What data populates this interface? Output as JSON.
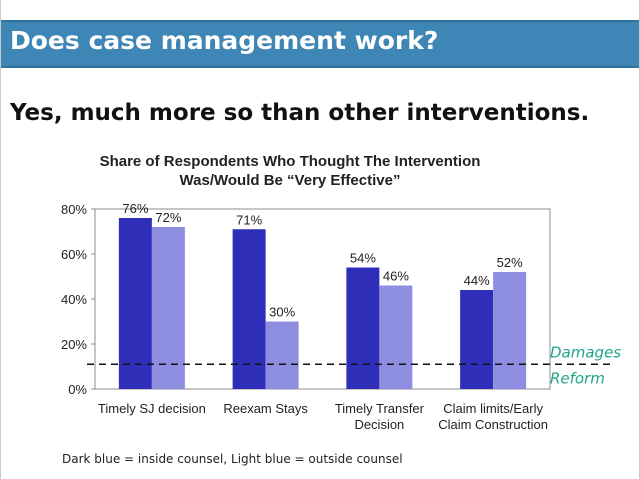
{
  "header": {
    "title": "Does case management work?"
  },
  "subtitle": "Yes, much more so than other interventions.",
  "footnote": "Dark blue = inside counsel, Light blue = outside counsel",
  "colors": {
    "header_bg": "#3d86b5",
    "inside_counsel": "#2e2eb8",
    "outside_counsel": "#8e8ee0",
    "annotation": "#1fa38a"
  },
  "chart_data": {
    "type": "bar",
    "title_lines": [
      "Share of Respondents Who Thought The Intervention",
      "Was/Would Be “Very Effective”"
    ],
    "categories": [
      [
        "Timely SJ decision"
      ],
      [
        "Reexam Stays"
      ],
      [
        "Timely Transfer",
        "Decision"
      ],
      [
        "Claim limits/Early",
        "Claim Construction"
      ]
    ],
    "series": [
      {
        "values": [
          76,
          71,
          54,
          44
        ]
      },
      {
        "values": [
          72,
          30,
          46,
          52
        ]
      }
    ],
    "ylim": [
      0,
      80
    ],
    "yticks": [
      0,
      20,
      40,
      60,
      80
    ],
    "ytick_labels": [
      "0%",
      "20%",
      "40%",
      "60%",
      "80%"
    ],
    "data_labels": [
      [
        "76%",
        "71%",
        "54%",
        "44%"
      ],
      [
        "72%",
        "30%",
        "46%",
        "52%"
      ]
    ],
    "reference_line": {
      "value": 11,
      "label_lines": [
        "Damages",
        "Reform"
      ],
      "style": "dashed"
    },
    "grid": false,
    "legend": "none"
  }
}
